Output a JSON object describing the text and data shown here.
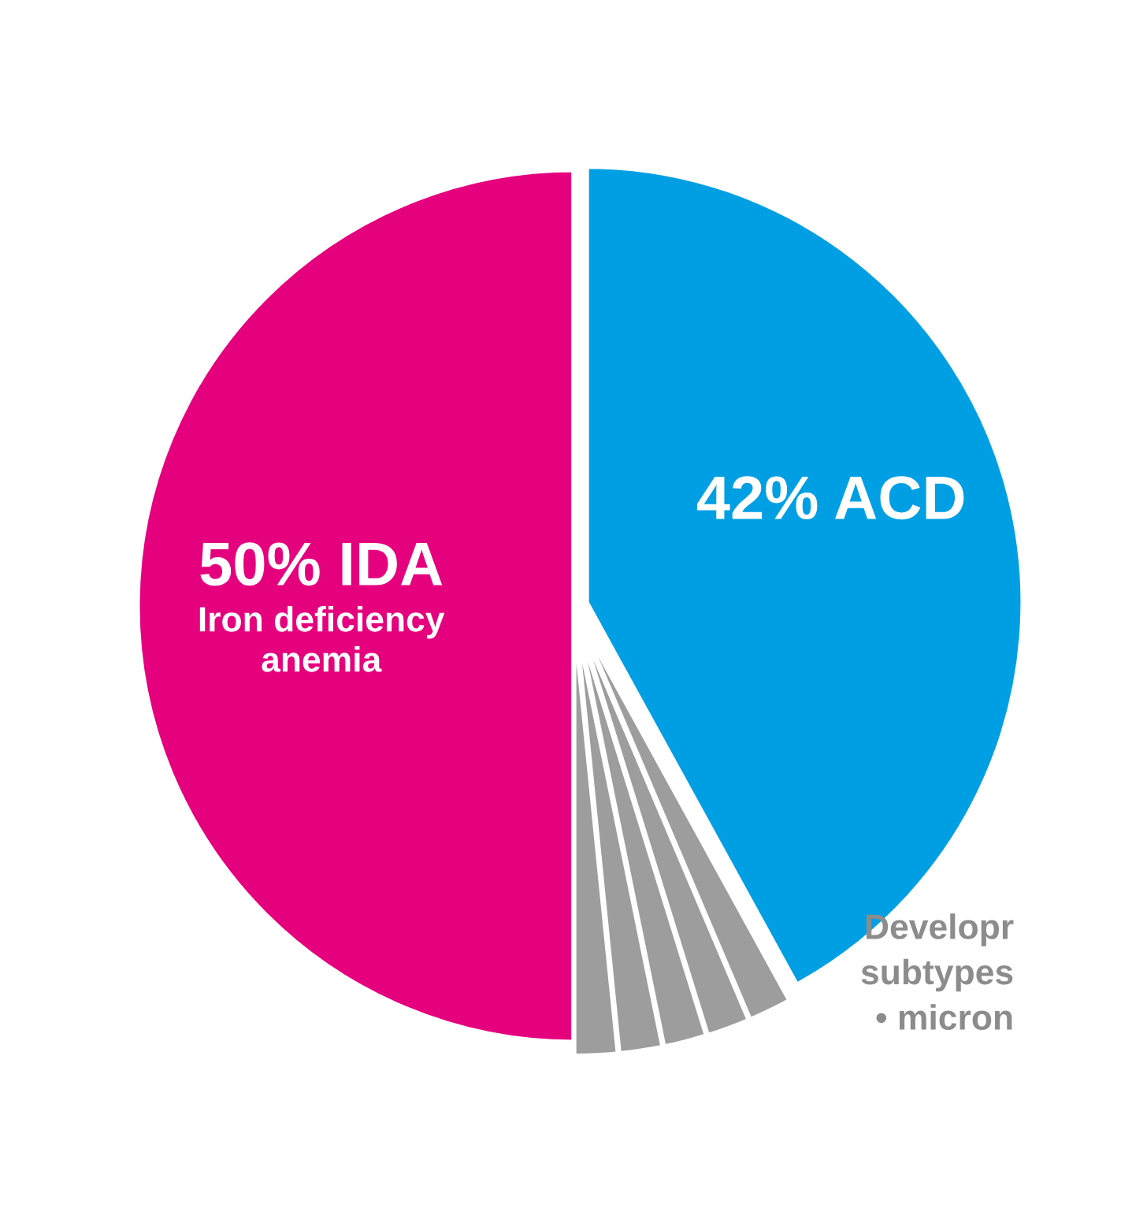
{
  "chart_data": {
    "type": "pie",
    "categories": [
      "42% ACD",
      null,
      null,
      null,
      null,
      null,
      "50% IDA\nIron deficiency\nanemia"
    ],
    "values": [
      42,
      1.6,
      1.6,
      1.6,
      1.6,
      1.6,
      50
    ],
    "colors": [
      "#009fe3",
      "#9d9d9d",
      "#9d9d9d",
      "#9d9d9d",
      "#9d9d9d",
      "#9d9d9d",
      "#e5007e"
    ],
    "annotations": [
      "Developr\nsubtypes\n• micron"
    ],
    "legend": false
  }
}
